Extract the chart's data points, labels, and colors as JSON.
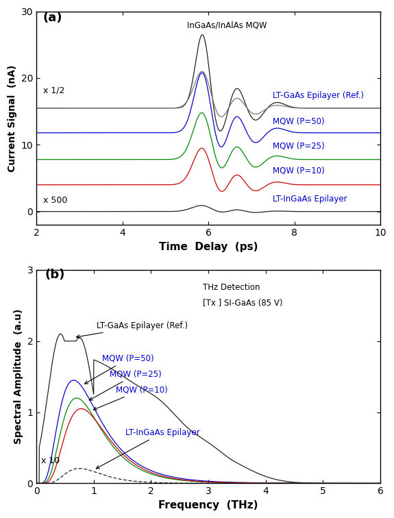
{
  "panel_a": {
    "label": "(a)",
    "xlabel": "Time  Delay  (ps)",
    "ylabel": "Current Signal  (nA)",
    "xlim": [
      2,
      10
    ],
    "ylim": [
      -2,
      30
    ],
    "yticks": [
      0,
      10,
      20,
      30
    ],
    "xticks": [
      2,
      4,
      6,
      8,
      10
    ],
    "annotation_half": "x 1/2",
    "annotation_500": "x 500",
    "text_MQW": "InGaAs/InAlAs MQW",
    "text_LTGaAs": "LT-GaAs Epilayer (Ref.)",
    "text_P50": "MQW (P=50)",
    "text_P25": "MQW (P=25)",
    "text_P10": "MQW (P=10)",
    "text_LTInGaAs": "LT-InGaAs Epilayer",
    "color_black": "#222222",
    "color_grey": "#777777",
    "color_blue": "#0000cc",
    "color_green": "#008800",
    "color_red": "#cc0000"
  },
  "panel_b": {
    "label": "(b)",
    "xlabel": "Frequency  (THz)",
    "ylabel": "Spectral Amplitude  (a.u)",
    "xlim": [
      0,
      6
    ],
    "ylim": [
      0,
      3
    ],
    "yticks": [
      0,
      1,
      2,
      3
    ],
    "xticks": [
      0,
      1,
      2,
      3,
      4,
      5,
      6
    ],
    "text_detection": "THz Detection",
    "text_tx": "[Tx ] SI-GaAs (85 V)",
    "text_LTGaAs": "LT-GaAs Epilayer (Ref.)",
    "text_P50": "MQW (P=50)",
    "text_P25": "MQW (P=25)",
    "text_P10": "MQW (P=10)",
    "text_LTInGaAs": "LT-InGaAs Epilayer",
    "annotation_x10": "x 10",
    "color_black": "#222222",
    "color_blue": "#0000cc",
    "color_green": "#008800",
    "color_red": "#cc0000",
    "color_grey": "#777777"
  }
}
